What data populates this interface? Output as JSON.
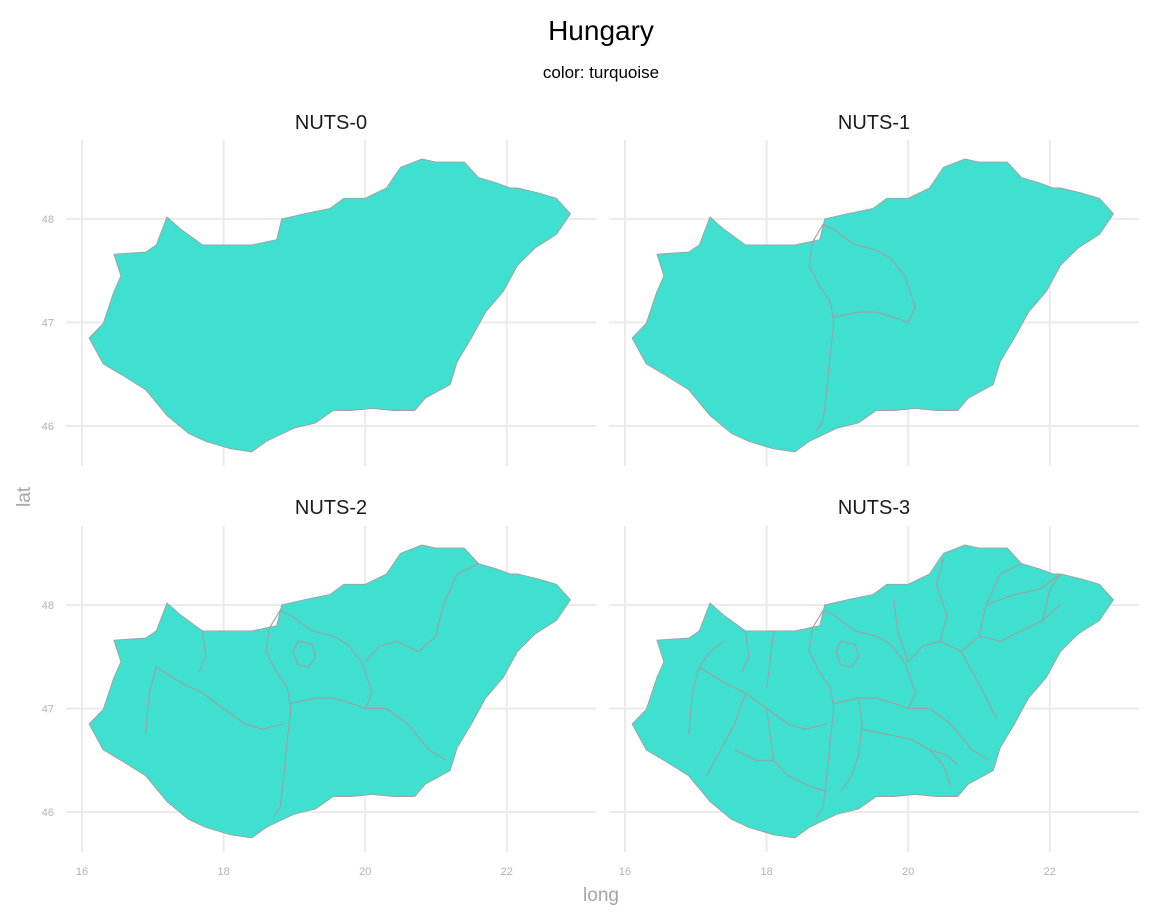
{
  "chart_data": {
    "type": "map",
    "title": "Hungary",
    "subtitle": "color: turquoise",
    "xlabel": "long",
    "ylabel": "lat",
    "fill_color": "#40E0D0",
    "border_color": "#A0A0A0",
    "xlim": [
      16,
      23
    ],
    "ylim": [
      45.7,
      48.6
    ],
    "x_ticks": [
      16,
      18,
      20,
      22
    ],
    "y_ticks": [
      46,
      47,
      48
    ],
    "x_tick_labels": [
      "16",
      "18",
      "20",
      "22"
    ],
    "y_tick_labels": [
      "46",
      "47",
      "48"
    ],
    "panels": [
      {
        "label": "NUTS-0",
        "level": 0
      },
      {
        "label": "NUTS-1",
        "level": 1
      },
      {
        "label": "NUTS-2",
        "level": 2
      },
      {
        "label": "NUTS-3",
        "level": 3
      }
    ],
    "outline": [
      [
        16.1,
        46.85
      ],
      [
        16.3,
        46.99
      ],
      [
        16.45,
        47.3
      ],
      [
        16.55,
        47.45
      ],
      [
        16.45,
        47.66
      ],
      [
        16.65,
        47.67
      ],
      [
        16.9,
        47.68
      ],
      [
        17.05,
        47.75
      ],
      [
        17.2,
        48.02
      ],
      [
        17.4,
        47.9
      ],
      [
        17.7,
        47.75
      ],
      [
        18.0,
        47.75
      ],
      [
        18.4,
        47.75
      ],
      [
        18.75,
        47.8
      ],
      [
        18.82,
        48.0
      ],
      [
        19.2,
        48.06
      ],
      [
        19.5,
        48.1
      ],
      [
        19.7,
        48.2
      ],
      [
        20.0,
        48.2
      ],
      [
        20.3,
        48.3
      ],
      [
        20.5,
        48.5
      ],
      [
        20.8,
        48.58
      ],
      [
        21.0,
        48.55
      ],
      [
        21.4,
        48.55
      ],
      [
        21.6,
        48.4
      ],
      [
        21.85,
        48.35
      ],
      [
        22.05,
        48.3
      ],
      [
        22.15,
        48.3
      ],
      [
        22.45,
        48.25
      ],
      [
        22.7,
        48.2
      ],
      [
        22.9,
        48.05
      ],
      [
        22.7,
        47.85
      ],
      [
        22.4,
        47.72
      ],
      [
        22.15,
        47.55
      ],
      [
        21.95,
        47.3
      ],
      [
        21.7,
        47.1
      ],
      [
        21.5,
        46.85
      ],
      [
        21.3,
        46.62
      ],
      [
        21.2,
        46.4
      ],
      [
        20.85,
        46.27
      ],
      [
        20.7,
        46.15
      ],
      [
        20.4,
        46.15
      ],
      [
        20.1,
        46.17
      ],
      [
        19.8,
        46.15
      ],
      [
        19.55,
        46.15
      ],
      [
        19.3,
        46.03
      ],
      [
        19.0,
        45.98
      ],
      [
        18.75,
        45.9
      ],
      [
        18.6,
        45.85
      ],
      [
        18.4,
        45.75
      ],
      [
        18.1,
        45.78
      ],
      [
        17.75,
        45.85
      ],
      [
        17.5,
        45.93
      ],
      [
        17.2,
        46.1
      ],
      [
        16.9,
        46.35
      ],
      [
        16.55,
        46.5
      ],
      [
        16.3,
        46.6
      ],
      [
        16.1,
        46.85
      ]
    ],
    "borders": {
      "nuts1": [
        [
          [
            18.8,
            47.95
          ],
          [
            18.65,
            47.78
          ],
          [
            18.6,
            47.55
          ],
          [
            18.75,
            47.35
          ],
          [
            18.9,
            47.2
          ],
          [
            18.95,
            47.0
          ],
          [
            18.9,
            46.7
          ],
          [
            18.85,
            46.35
          ],
          [
            18.8,
            46.05
          ],
          [
            18.7,
            45.95
          ]
        ],
        [
          [
            18.95,
            47.05
          ],
          [
            19.3,
            47.1
          ],
          [
            19.55,
            47.1
          ],
          [
            19.8,
            47.05
          ],
          [
            20.0,
            47.0
          ],
          [
            20.1,
            47.15
          ],
          [
            19.95,
            47.45
          ],
          [
            19.75,
            47.62
          ],
          [
            19.55,
            47.7
          ],
          [
            19.25,
            47.75
          ],
          [
            18.95,
            47.9
          ],
          [
            18.8,
            47.95
          ]
        ]
      ],
      "nuts2": [
        [
          [
            18.8,
            47.95
          ],
          [
            18.65,
            47.78
          ],
          [
            18.6,
            47.55
          ],
          [
            18.75,
            47.35
          ],
          [
            18.9,
            47.2
          ],
          [
            18.95,
            47.0
          ],
          [
            18.9,
            46.7
          ],
          [
            18.85,
            46.35
          ],
          [
            18.8,
            46.05
          ],
          [
            18.7,
            45.95
          ]
        ],
        [
          [
            18.95,
            47.05
          ],
          [
            19.3,
            47.1
          ],
          [
            19.55,
            47.1
          ],
          [
            19.8,
            47.05
          ],
          [
            20.0,
            47.0
          ],
          [
            20.1,
            47.15
          ],
          [
            19.95,
            47.45
          ],
          [
            19.75,
            47.62
          ],
          [
            19.55,
            47.7
          ],
          [
            19.25,
            47.75
          ],
          [
            18.95,
            47.9
          ],
          [
            18.8,
            47.95
          ]
        ],
        [
          [
            17.05,
            47.4
          ],
          [
            17.4,
            47.25
          ],
          [
            17.7,
            47.15
          ],
          [
            18.0,
            47.0
          ],
          [
            18.3,
            46.85
          ],
          [
            18.55,
            46.8
          ],
          [
            18.85,
            46.85
          ]
        ],
        [
          [
            17.7,
            47.75
          ],
          [
            17.75,
            47.5
          ],
          [
            17.65,
            47.35
          ]
        ],
        [
          [
            17.05,
            47.4
          ],
          [
            16.95,
            47.15
          ],
          [
            16.9,
            46.75
          ]
        ],
        [
          [
            20.0,
            47.0
          ],
          [
            20.3,
            47.0
          ],
          [
            20.6,
            46.85
          ],
          [
            20.9,
            46.6
          ],
          [
            21.15,
            46.5
          ]
        ],
        [
          [
            20.0,
            47.45
          ],
          [
            20.2,
            47.6
          ],
          [
            20.45,
            47.65
          ],
          [
            20.75,
            47.55
          ],
          [
            21.0,
            47.7
          ],
          [
            21.1,
            48.0
          ],
          [
            21.3,
            48.3
          ],
          [
            21.6,
            48.4
          ]
        ],
        [
          [
            19.05,
            47.42
          ],
          [
            19.2,
            47.4
          ],
          [
            19.3,
            47.5
          ],
          [
            19.25,
            47.62
          ],
          [
            19.05,
            47.65
          ],
          [
            18.98,
            47.55
          ],
          [
            19.05,
            47.42
          ]
        ]
      ],
      "nuts3": [
        [
          [
            18.8,
            47.95
          ],
          [
            18.65,
            47.78
          ],
          [
            18.6,
            47.55
          ],
          [
            18.75,
            47.35
          ],
          [
            18.9,
            47.2
          ],
          [
            18.95,
            47.0
          ],
          [
            18.9,
            46.7
          ],
          [
            18.85,
            46.35
          ],
          [
            18.8,
            46.05
          ],
          [
            18.7,
            45.95
          ]
        ],
        [
          [
            18.95,
            47.05
          ],
          [
            19.3,
            47.1
          ],
          [
            19.55,
            47.1
          ],
          [
            19.8,
            47.05
          ],
          [
            20.0,
            47.0
          ],
          [
            20.1,
            47.15
          ],
          [
            19.95,
            47.45
          ],
          [
            19.75,
            47.62
          ],
          [
            19.55,
            47.7
          ],
          [
            19.25,
            47.75
          ],
          [
            18.95,
            47.9
          ],
          [
            18.8,
            47.95
          ]
        ],
        [
          [
            17.05,
            47.4
          ],
          [
            17.4,
            47.25
          ],
          [
            17.7,
            47.15
          ],
          [
            18.0,
            47.0
          ],
          [
            18.3,
            46.85
          ],
          [
            18.55,
            46.8
          ],
          [
            18.85,
            46.85
          ]
        ],
        [
          [
            17.7,
            47.75
          ],
          [
            17.75,
            47.5
          ],
          [
            17.65,
            47.35
          ]
        ],
        [
          [
            17.05,
            47.4
          ],
          [
            16.95,
            47.15
          ],
          [
            16.9,
            46.75
          ]
        ],
        [
          [
            20.0,
            47.0
          ],
          [
            20.3,
            47.0
          ],
          [
            20.6,
            46.85
          ],
          [
            20.9,
            46.6
          ],
          [
            21.15,
            46.5
          ]
        ],
        [
          [
            20.0,
            47.45
          ],
          [
            20.2,
            47.6
          ],
          [
            20.45,
            47.65
          ],
          [
            20.75,
            47.55
          ],
          [
            21.0,
            47.7
          ],
          [
            21.1,
            48.0
          ],
          [
            21.3,
            48.3
          ],
          [
            21.6,
            48.4
          ]
        ],
        [
          [
            19.05,
            47.42
          ],
          [
            19.2,
            47.4
          ],
          [
            19.3,
            47.5
          ],
          [
            19.25,
            47.62
          ],
          [
            19.05,
            47.65
          ],
          [
            18.98,
            47.55
          ],
          [
            19.05,
            47.42
          ]
        ],
        [
          [
            17.05,
            47.4
          ],
          [
            17.2,
            47.55
          ],
          [
            17.4,
            47.65
          ]
        ],
        [
          [
            18.1,
            47.75
          ],
          [
            18.05,
            47.45
          ],
          [
            18.0,
            47.2
          ]
        ],
        [
          [
            17.7,
            47.15
          ],
          [
            17.55,
            46.85
          ],
          [
            17.35,
            46.6
          ],
          [
            17.15,
            46.35
          ]
        ],
        [
          [
            18.0,
            47.0
          ],
          [
            18.05,
            46.75
          ],
          [
            18.1,
            46.5
          ],
          [
            18.3,
            46.35
          ],
          [
            18.6,
            46.25
          ],
          [
            18.85,
            46.2
          ]
        ],
        [
          [
            17.55,
            46.6
          ],
          [
            17.85,
            46.5
          ],
          [
            18.1,
            46.5
          ]
        ],
        [
          [
            19.3,
            47.1
          ],
          [
            19.35,
            46.85
          ],
          [
            19.3,
            46.55
          ],
          [
            19.2,
            46.35
          ],
          [
            19.05,
            46.2
          ]
        ],
        [
          [
            19.35,
            46.8
          ],
          [
            19.7,
            46.75
          ],
          [
            20.05,
            46.7
          ],
          [
            20.3,
            46.6
          ],
          [
            20.5,
            46.45
          ],
          [
            20.6,
            46.25
          ]
        ],
        [
          [
            20.3,
            46.6
          ],
          [
            20.55,
            46.55
          ],
          [
            20.7,
            46.45
          ]
        ],
        [
          [
            20.0,
            47.45
          ],
          [
            19.85,
            47.75
          ],
          [
            19.8,
            48.05
          ]
        ],
        [
          [
            20.45,
            47.65
          ],
          [
            20.55,
            47.9
          ],
          [
            20.4,
            48.2
          ],
          [
            20.5,
            48.45
          ]
        ],
        [
          [
            20.75,
            47.55
          ],
          [
            20.95,
            47.3
          ],
          [
            21.1,
            47.1
          ],
          [
            21.25,
            46.9
          ]
        ],
        [
          [
            21.0,
            47.7
          ],
          [
            21.3,
            47.65
          ],
          [
            21.6,
            47.75
          ],
          [
            21.9,
            47.85
          ],
          [
            22.15,
            48.0
          ]
        ],
        [
          [
            21.9,
            47.85
          ],
          [
            22.0,
            48.15
          ],
          [
            22.15,
            48.3
          ]
        ],
        [
          [
            21.1,
            48.0
          ],
          [
            21.5,
            48.1
          ],
          [
            21.85,
            48.15
          ],
          [
            22.15,
            48.3
          ]
        ]
      ]
    }
  }
}
